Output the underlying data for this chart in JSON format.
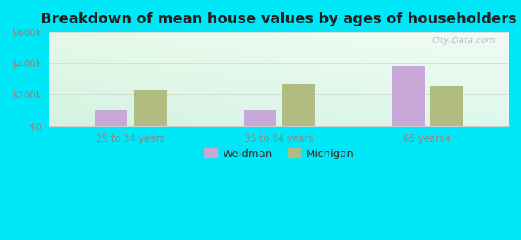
{
  "title": "Breakdown of mean house values by ages of householders",
  "categories": [
    "25 to 34 years",
    "35 to 64 years",
    "65 years+"
  ],
  "weidman_values": [
    105000,
    100000,
    385000
  ],
  "michigan_values": [
    228000,
    270000,
    258000
  ],
  "ylim": [
    0,
    600000
  ],
  "yticks": [
    0,
    200000,
    400000,
    600000
  ],
  "ytick_labels": [
    "$0",
    "$200k",
    "$400k",
    "$600k"
  ],
  "weidman_color": "#c8a8d8",
  "michigan_color": "#b0bc80",
  "background_outer": "#00e8f8",
  "title_fontsize": 13,
  "bar_width": 0.22,
  "legend_labels": [
    "Weidman",
    "Michigan"
  ],
  "watermark": "City-Data.com",
  "tick_color": "#888888",
  "grid_color": "#cccccc"
}
